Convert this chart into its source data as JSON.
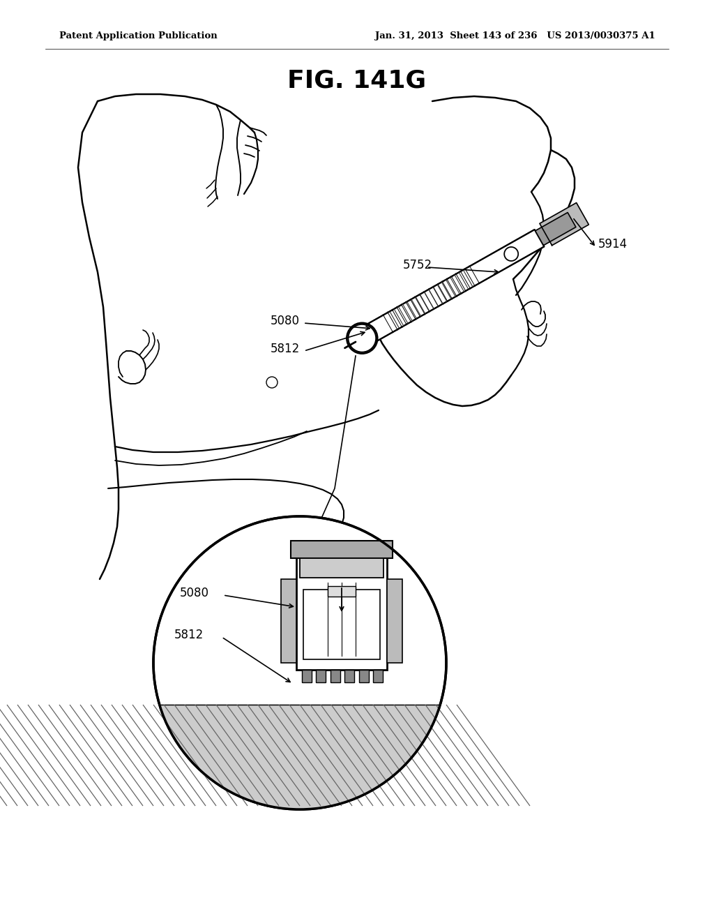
{
  "title": "FIG. 141G",
  "header_left": "Patent Application Publication",
  "header_right": "Jan. 31, 2013  Sheet 143 of 236   US 2013/0030375 A1",
  "bg_color": "#ffffff",
  "text_color": "#000000",
  "fig_width": 10.24,
  "fig_height": 13.2,
  "dpi": 100
}
